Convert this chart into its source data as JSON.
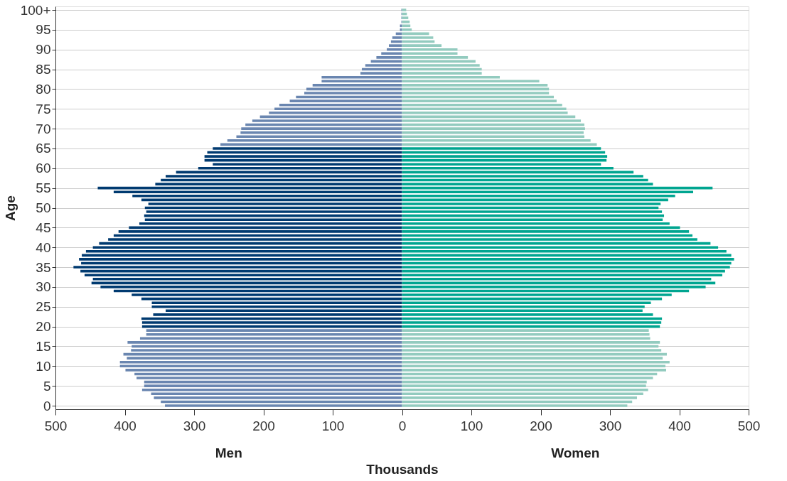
{
  "chart_data": {
    "type": "bar",
    "orientation": "horizontal",
    "stacked": true,
    "xlabel": "Thousands",
    "ylabel": "Age",
    "grid": "y",
    "x": [
      0,
      1,
      2,
      3,
      4,
      5,
      6,
      7,
      8,
      9,
      10,
      11,
      12,
      13,
      14,
      15,
      16,
      17,
      18,
      19,
      20,
      21,
      22,
      23,
      24,
      25,
      26,
      27,
      28,
      29,
      30,
      31,
      32,
      33,
      34,
      35,
      36,
      37,
      38,
      39,
      40,
      41,
      42,
      43,
      44,
      45,
      46,
      47,
      48,
      49,
      50,
      51,
      52,
      53,
      54,
      55,
      56,
      57,
      58,
      59,
      60,
      61,
      62,
      63,
      64,
      65,
      66,
      67,
      68,
      69,
      70,
      71,
      72,
      73,
      74,
      75,
      76,
      77,
      78,
      79,
      80,
      81,
      82,
      83,
      84,
      85,
      86,
      87,
      88,
      89,
      90,
      91,
      92,
      93,
      94,
      95,
      96,
      97,
      98,
      99,
      100
    ],
    "xlim": [
      -500,
      500
    ],
    "xticks": [
      {
        "value": -500,
        "label": "500"
      },
      {
        "value": -400,
        "label": "400"
      },
      {
        "value": -300,
        "label": "300"
      },
      {
        "value": -200,
        "label": "200"
      },
      {
        "value": -100,
        "label": "100"
      },
      0,
      100,
      200,
      300,
      400,
      500
    ],
    "ylim": [
      0,
      100
    ],
    "yticks": [
      0,
      5,
      10,
      15,
      20,
      25,
      30,
      35,
      40,
      45,
      50,
      55,
      60,
      65,
      70,
      75,
      80,
      85,
      90,
      95,
      {
        "value": 100,
        "label": "100+"
      }
    ],
    "series": [
      {
        "name": "Men",
        "values": [
          -342,
          -348,
          -358,
          -362,
          -375,
          -372,
          -372,
          -383,
          -386,
          -399,
          -407,
          -407,
          -397,
          -402,
          -391,
          -390,
          -396,
          -378,
          -369,
          -369,
          -375,
          -375,
          -376,
          -359,
          -341,
          -361,
          -361,
          -376,
          -390,
          -416,
          -435,
          -448,
          -446,
          -458,
          -464,
          -474,
          -463,
          -466,
          -462,
          -456,
          -446,
          -437,
          -424,
          -416,
          -409,
          -394,
          -379,
          -371,
          -372,
          -369,
          -371,
          -366,
          -376,
          -389,
          -416,
          -439,
          -356,
          -348,
          -341,
          -326,
          -294,
          -273,
          -285,
          -285,
          -281,
          -273,
          -262,
          -252,
          -239,
          -233,
          -232,
          -226,
          -216,
          -205,
          -192,
          -184,
          -177,
          -162,
          -153,
          -141,
          -138,
          -129,
          -116,
          -116,
          -60,
          -58,
          -53,
          -45,
          -37,
          -30,
          -22,
          -19,
          -16,
          -14,
          -9,
          -3,
          -3,
          -1,
          -1,
          -1,
          -1
        ],
        "colors": [
          "#6a86b0",
          "#6a86b0",
          "#6a86b0",
          "#6a86b0",
          "#6a86b0",
          "#6a86b0",
          "#6a86b0",
          "#6a86b0",
          "#6a86b0",
          "#6a86b0",
          "#6a86b0",
          "#6a86b0",
          "#6a86b0",
          "#6a86b0",
          "#6a86b0",
          "#6a86b0",
          "#6a86b0",
          "#6a86b0",
          "#6a86b0",
          "#6a86b0",
          "#003a70",
          "#003a70",
          "#003a70",
          "#003a70",
          "#003a70",
          "#003a70",
          "#003a70",
          "#003a70",
          "#003a70",
          "#003a70",
          "#003a70",
          "#003a70",
          "#003a70",
          "#003a70",
          "#003a70",
          "#003a70",
          "#003a70",
          "#003a70",
          "#003a70",
          "#003a70",
          "#003a70",
          "#003a70",
          "#003a70",
          "#003a70",
          "#003a70",
          "#003a70",
          "#003a70",
          "#003a70",
          "#003a70",
          "#003a70",
          "#003a70",
          "#003a70",
          "#003a70",
          "#003a70",
          "#003a70",
          "#003a70",
          "#003a70",
          "#003a70",
          "#003a70",
          "#003a70",
          "#003a70",
          "#003a70",
          "#003a70",
          "#003a70",
          "#003a70",
          "#003a70",
          "#6a86b0",
          "#6a86b0",
          "#6a86b0",
          "#6a86b0",
          "#6a86b0",
          "#6a86b0",
          "#6a86b0",
          "#6a86b0",
          "#6a86b0",
          "#6a86b0",
          "#6a86b0",
          "#6a86b0",
          "#6a86b0",
          "#6a86b0",
          "#6a86b0",
          "#6a86b0",
          "#6a86b0",
          "#6a86b0",
          "#6a86b0",
          "#6a86b0",
          "#6a86b0",
          "#6a86b0",
          "#6a86b0",
          "#6a86b0",
          "#6a86b0",
          "#6a86b0",
          "#6a86b0",
          "#6a86b0",
          "#6a86b0",
          "#6a86b0",
          "#6a86b0",
          "#6a86b0",
          "#6a86b0",
          "#6a86b0",
          "#6a86b0"
        ]
      },
      {
        "name": "Women",
        "values": [
          325,
          332,
          339,
          348,
          355,
          352,
          353,
          362,
          368,
          381,
          380,
          386,
          376,
          382,
          374,
          370,
          372,
          358,
          357,
          356,
          372,
          374,
          375,
          362,
          347,
          350,
          359,
          375,
          389,
          414,
          438,
          452,
          446,
          462,
          466,
          473,
          475,
          479,
          475,
          468,
          456,
          445,
          426,
          419,
          414,
          401,
          386,
          376,
          378,
          375,
          370,
          373,
          384,
          394,
          420,
          448,
          362,
          355,
          348,
          334,
          305,
          287,
          295,
          296,
          293,
          287,
          281,
          272,
          263,
          262,
          264,
          263,
          258,
          250,
          239,
          237,
          231,
          223,
          219,
          212,
          212,
          210,
          198,
          141,
          115,
          115,
          112,
          106,
          95,
          80,
          80,
          57,
          47,
          45,
          39,
          14,
          12,
          11,
          9,
          7,
          6
        ],
        "colors": [
          "#93cbbf",
          "#93cbbf",
          "#93cbbf",
          "#93cbbf",
          "#93cbbf",
          "#93cbbf",
          "#93cbbf",
          "#93cbbf",
          "#93cbbf",
          "#93cbbf",
          "#93cbbf",
          "#93cbbf",
          "#93cbbf",
          "#93cbbf",
          "#93cbbf",
          "#93cbbf",
          "#93cbbf",
          "#93cbbf",
          "#93cbbf",
          "#93cbbf",
          "#00a590",
          "#00a590",
          "#00a590",
          "#00a590",
          "#00a590",
          "#00a590",
          "#00a590",
          "#00a590",
          "#00a590",
          "#00a590",
          "#00a590",
          "#00a590",
          "#00a590",
          "#00a590",
          "#00a590",
          "#00a590",
          "#00a590",
          "#00a590",
          "#00a590",
          "#00a590",
          "#00a590",
          "#00a590",
          "#00a590",
          "#00a590",
          "#00a590",
          "#00a590",
          "#00a590",
          "#00a590",
          "#00a590",
          "#00a590",
          "#00a590",
          "#00a590",
          "#00a590",
          "#00a590",
          "#00a590",
          "#00a590",
          "#00a590",
          "#00a590",
          "#00a590",
          "#00a590",
          "#00a590",
          "#00a590",
          "#00a590",
          "#00a590",
          "#00a590",
          "#00a590",
          "#93cbbf",
          "#93cbbf",
          "#93cbbf",
          "#93cbbf",
          "#93cbbf",
          "#93cbbf",
          "#93cbbf",
          "#93cbbf",
          "#93cbbf",
          "#93cbbf",
          "#93cbbf",
          "#93cbbf",
          "#93cbbf",
          "#93cbbf",
          "#93cbbf",
          "#93cbbf",
          "#93cbbf",
          "#93cbbf",
          "#93cbbf",
          "#93cbbf",
          "#93cbbf",
          "#93cbbf",
          "#93cbbf",
          "#93cbbf",
          "#93cbbf",
          "#93cbbf",
          "#93cbbf",
          "#93cbbf",
          "#93cbbf",
          "#93cbbf",
          "#93cbbf",
          "#93cbbf",
          "#93cbbf",
          "#93cbbf",
          "#93cbbf"
        ]
      }
    ]
  }
}
